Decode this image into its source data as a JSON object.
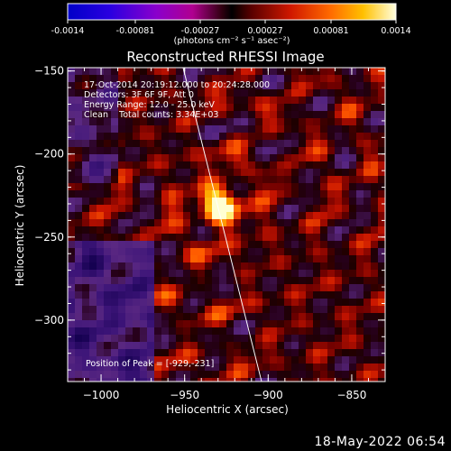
{
  "colorbar": {
    "ticks": [
      "-0.0014",
      "-0.00081",
      "-0.00027",
      "0.00027",
      "0.00081",
      "0.0014"
    ],
    "units": "(photons cm⁻² s⁻¹ asec⁻²)"
  },
  "plot": {
    "title": "Reconstructed RHESSI Image",
    "xlabel": "Heliocentric X (arcsec)",
    "ylabel": "Heliocentric Y (arcsec)",
    "xticks": [
      "-1000",
      "-950",
      "-900",
      "-850"
    ],
    "yticks": [
      "-150",
      "-200",
      "-250",
      "-300"
    ],
    "info_lines": [
      "17-Oct-2014 20:19:12.000 to 20:24:28.000",
      "Detectors: 3F 6F 9F, Att 0",
      "Energy Range: 12.0 - 25.0 keV",
      "Clean    Total counts: 3.34E+03"
    ],
    "peak_label": "Position of Peak = [-929,-231]"
  },
  "timestamp": "18-May-2022 06:54",
  "chart_data": {
    "type": "heatmap",
    "title": "Reconstructed RHESSI Image",
    "xlabel": "Heliocentric X (arcsec)",
    "ylabel": "Heliocentric Y (arcsec)",
    "xlim": [
      -1020,
      -830
    ],
    "ylim": [
      -337,
      -148
    ],
    "colorbar_range": [
      -0.0014,
      0.0014
    ],
    "peak": {
      "x": -929,
      "y": -231
    },
    "limb_line": true
  }
}
